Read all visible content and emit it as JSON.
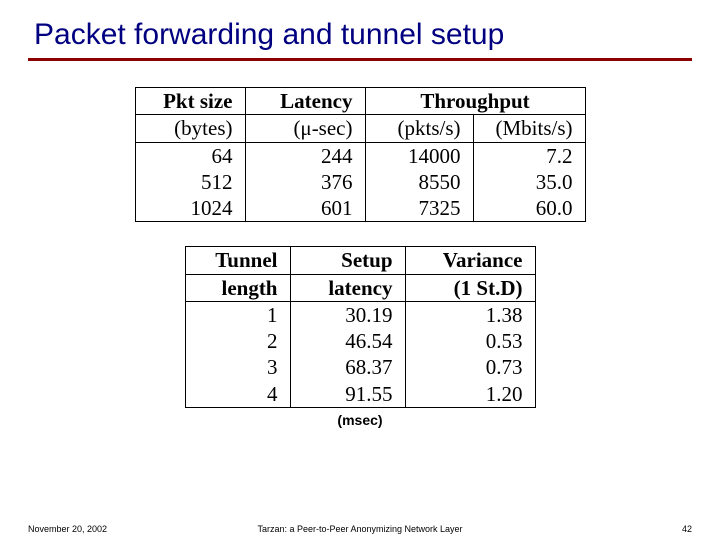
{
  "title": "Packet forwarding and tunnel setup",
  "rule_color": "#8b0000",
  "title_color": "#000080",
  "table1": {
    "headers": {
      "pkt_size_b": "Pkt size",
      "pkt_size_u": "(bytes)",
      "latency_b": "Latency",
      "latency_u": "(μ-sec)",
      "throughput_span_b": "Throughput",
      "throughput_pkts_u": "(pkts/s)",
      "throughput_mbits_u": "(Mbits/s)"
    },
    "rows": [
      {
        "pkt": "64",
        "lat": "244",
        "pkts": "14000",
        "mbits": "7.2"
      },
      {
        "pkt": "512",
        "lat": "376",
        "pkts": "8550",
        "mbits": "35.0"
      },
      {
        "pkt": "1024",
        "lat": "601",
        "pkts": "7325",
        "mbits": "60.0"
      }
    ]
  },
  "table2": {
    "headers": {
      "len_b": "Tunnel",
      "len_u": "length",
      "setup_b": "Setup",
      "setup_u": "latency",
      "var_b": "Variance",
      "var_u": "(1 St.D)"
    },
    "rows": [
      {
        "len": "1",
        "setup": "30.19",
        "var": "1.38"
      },
      {
        "len": "2",
        "setup": "46.54",
        "var": "0.53"
      },
      {
        "len": "3",
        "setup": "68.37",
        "var": "0.73"
      },
      {
        "len": "4",
        "setup": "91.55",
        "var": "1.20"
      }
    ],
    "unit_label": "(msec)"
  },
  "footer": {
    "date": "November 20, 2002",
    "center": "Tarzan: a Peer-to-Peer Anonymizing Network Layer",
    "page": "42"
  }
}
